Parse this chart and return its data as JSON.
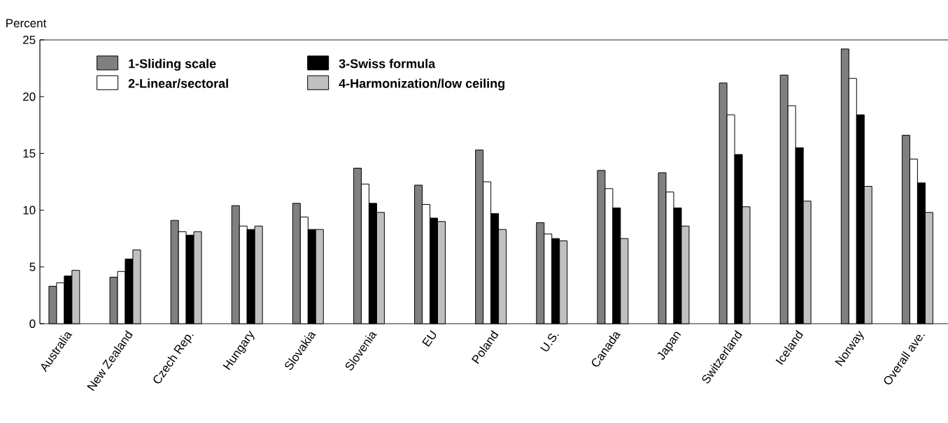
{
  "chart_data": {
    "type": "bar",
    "ylabel": "Percent",
    "categories": [
      "Australia",
      "New Zealand",
      "Czech Rep.",
      "Hungary",
      "Slovakia",
      "Slovenia",
      "EU",
      "Poland",
      "U.S.",
      "Canada",
      "Japan",
      "Switzerland",
      "Iceland",
      "Norway",
      "Overall ave."
    ],
    "series": [
      {
        "name": "1-Sliding scale",
        "color": "#808080",
        "values": [
          3.3,
          4.1,
          9.1,
          10.4,
          10.6,
          13.7,
          12.2,
          15.3,
          8.9,
          13.5,
          13.3,
          21.2,
          21.9,
          24.2,
          16.6
        ]
      },
      {
        "name": "2-Linear/sectoral",
        "color": "#ffffff",
        "values": [
          3.6,
          4.6,
          8.1,
          8.6,
          9.4,
          12.3,
          10.5,
          12.5,
          7.9,
          11.9,
          11.6,
          18.4,
          19.2,
          21.6,
          14.5
        ]
      },
      {
        "name": "3-Swiss formula",
        "color": "#000000",
        "values": [
          4.2,
          5.7,
          7.8,
          8.3,
          8.3,
          10.6,
          9.3,
          9.7,
          7.5,
          10.2,
          10.2,
          14.9,
          15.5,
          18.4,
          12.4
        ]
      },
      {
        "name": "4-Harmonization/low ceiling",
        "color": "#c0c0c0",
        "values": [
          4.7,
          6.5,
          8.1,
          8.6,
          8.3,
          9.8,
          9.0,
          8.3,
          7.3,
          7.5,
          8.6,
          10.3,
          10.8,
          12.1,
          9.8
        ]
      }
    ],
    "ylim": [
      0,
      25
    ],
    "yticks": [
      0,
      5,
      10,
      15,
      20,
      25
    ],
    "grid": false,
    "legend": "top left"
  }
}
